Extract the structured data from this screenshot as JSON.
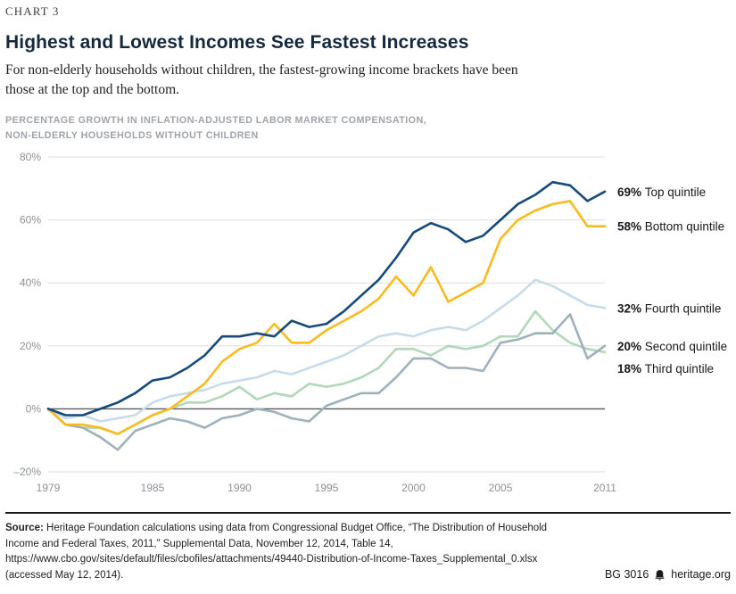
{
  "header": {
    "kicker": "CHART 3",
    "title": "Highest and Lowest Incomes See Fastest Increases",
    "subtitle": "For non-elderly households without children, the fastest-growing income brackets have been those at the top and the bottom.",
    "chart_label_line1": "PERCENTAGE GROWTH IN INFLATION-ADJUSTED LABOR MARKET COMPENSATION,",
    "chart_label_line2": "NON-ELDERLY HOUSEHOLDS WITHOUT CHILDREN"
  },
  "chart_data": {
    "type": "line",
    "title": "Percentage growth in inflation-adjusted labor market compensation, non-elderly households without children",
    "xlabel": "",
    "ylabel": "",
    "grid": true,
    "legend_position": "right",
    "ylim": [
      -20,
      80
    ],
    "y_ticks": [
      80,
      60,
      40,
      20,
      0,
      -20
    ],
    "x_ticks": [
      1979,
      1985,
      1990,
      1995,
      2000,
      2005,
      2011
    ],
    "x": [
      1979,
      1980,
      1981,
      1982,
      1983,
      1984,
      1985,
      1986,
      1987,
      1988,
      1989,
      1990,
      1991,
      1992,
      1993,
      1994,
      1995,
      1996,
      1997,
      1998,
      1999,
      2000,
      2001,
      2002,
      2003,
      2004,
      2005,
      2006,
      2007,
      2008,
      2009,
      2010,
      2011
    ],
    "colors": {
      "grid": "#dedede",
      "zero_line": "#58595b"
    },
    "series": [
      {
        "id": "top-quintile",
        "name": "Top quintile",
        "end_pct": "69%",
        "color": "#174a7c",
        "values": [
          0,
          -2,
          -2,
          0,
          2,
          5,
          9,
          10,
          13,
          17,
          23,
          23,
          24,
          23,
          28,
          26,
          27,
          31,
          36,
          41,
          48,
          56,
          59,
          57,
          53,
          55,
          60,
          65,
          68,
          72,
          71,
          66,
          69
        ]
      },
      {
        "id": "bottom-quintile",
        "name": "Bottom quintile",
        "end_pct": "58%",
        "color": "#f9bb1d",
        "values": [
          0,
          -5,
          -5,
          -6,
          -8,
          -5,
          -2,
          0,
          4,
          8,
          15,
          19,
          21,
          27,
          21,
          21,
          25,
          28,
          31,
          35,
          42,
          36,
          45,
          34,
          37,
          40,
          54,
          60,
          63,
          65,
          66,
          58,
          58
        ]
      },
      {
        "id": "fourth-quintile",
        "name": "Fourth quintile",
        "end_pct": "32%",
        "color": "#c8dbe9",
        "values": [
          0,
          -3,
          -2,
          -4,
          -3,
          -2,
          2,
          4,
          5,
          6,
          8,
          9,
          10,
          12,
          11,
          13,
          15,
          17,
          20,
          23,
          24,
          23,
          25,
          26,
          25,
          28,
          32,
          36,
          41,
          39,
          36,
          33,
          32
        ]
      },
      {
        "id": "second-quintile",
        "name": "Second quintile",
        "end_pct": "20%",
        "color": "#9fb1bb",
        "values": [
          0,
          -5,
          -6,
          -9,
          -13,
          -7,
          -5,
          -3,
          -4,
          -6,
          -3,
          -2,
          0,
          -1,
          -3,
          -4,
          1,
          3,
          5,
          5,
          10,
          16,
          16,
          13,
          13,
          12,
          21,
          22,
          24,
          24,
          30,
          16,
          20
        ]
      },
      {
        "id": "third-quintile",
        "name": "Third quintile",
        "end_pct": "18%",
        "color": "#b2d8b9",
        "values": [
          0,
          -5,
          -6,
          -6,
          -8,
          -5,
          -2,
          0,
          2,
          2,
          4,
          7,
          3,
          5,
          4,
          8,
          7,
          8,
          10,
          13,
          19,
          19,
          17,
          20,
          19,
          20,
          23,
          23,
          31,
          25,
          21,
          19,
          18
        ]
      }
    ]
  },
  "footer": {
    "source_label": "Source:",
    "source_text": "Heritage Foundation calculations using data from Congressional Budget Office, “The Distribution of Household Income and Federal Taxes, 2011,” Supplemental Data, November 12, 2014, Table 14, https://www.cbo.gov/sites/default/files/cbofiles/attachments/49440-Distribution-of-Income-Taxes_Supplemental_0.xlsx (accessed May 12, 2014).",
    "doc_id": "BG 3016",
    "site": "heritage.org"
  }
}
